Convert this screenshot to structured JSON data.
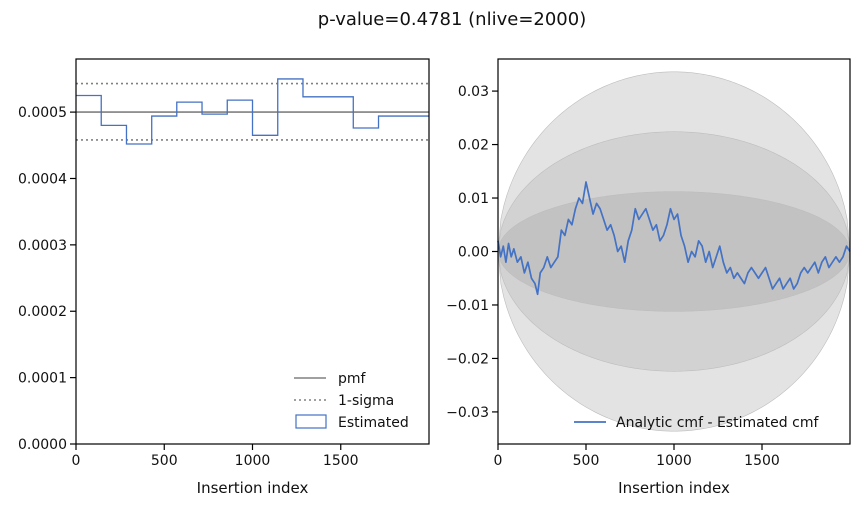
{
  "title": "p-value=0.4781 (nlive=2000)",
  "colors": {
    "estimated": "#4472c4",
    "pmf": "#808080",
    "sigma": "#808080",
    "band_outer": "#e3e3e3",
    "band_middle": "#d2d2d2",
    "band_inner": "#c2c2c2",
    "frame": "#000000"
  },
  "chart_data": [
    {
      "type": "histogram",
      "xlabel": "Insertion index",
      "ylabel": "",
      "xlim": [
        0,
        2000
      ],
      "ylim": [
        0,
        0.00058
      ],
      "x_ticks": [
        0,
        500,
        1000,
        1500
      ],
      "x_tick_labels": [
        "0",
        "500",
        "1000",
        "1500"
      ],
      "y_ticks": [
        0,
        0.0001,
        0.0002,
        0.0003,
        0.0004,
        0.0005
      ],
      "y_tick_labels": [
        "0.0000",
        "0.0001",
        "0.0002",
        "0.0003",
        "0.0004",
        "0.0005"
      ],
      "pmf": 0.0005,
      "sigma_upper": 0.000543,
      "sigma_lower": 0.000458,
      "bin_edges": [
        0,
        143,
        286,
        429,
        571,
        714,
        857,
        1000,
        1143,
        1286,
        1429,
        1571,
        1714,
        1857,
        2000
      ],
      "bin_values": [
        0.000525,
        0.00048,
        0.000452,
        0.000494,
        0.000515,
        0.000497,
        0.000518,
        0.000465,
        0.00055,
        0.000523,
        0.000523,
        0.000476,
        0.000494,
        0.000494
      ],
      "legend": {
        "placement": "lower-right",
        "pmf_label": "pmf",
        "sigma_label": "1-sigma",
        "estimated_label": "Estimated"
      }
    },
    {
      "type": "line",
      "xlabel": "Insertion index",
      "ylabel": "",
      "xlim": [
        0,
        2000
      ],
      "ylim": [
        -0.036,
        0.036
      ],
      "x_ticks": [
        0,
        500,
        1000,
        1500
      ],
      "x_tick_labels": [
        "0",
        "500",
        "1000",
        "1500"
      ],
      "y_ticks": [
        -0.03,
        -0.02,
        -0.01,
        0.0,
        0.01,
        0.02,
        0.03
      ],
      "y_tick_labels": [
        "−0.03",
        "−0.02",
        "−0.01",
        "0.00",
        "0.01",
        "0.02",
        "0.03"
      ],
      "bands_sigma": [
        1,
        2,
        3
      ],
      "band_sigma_scale": 0.0112,
      "series": [
        {
          "name": "Analytic cmf - Estimated cmf",
          "x": [
            0,
            15,
            30,
            45,
            60,
            75,
            90,
            110,
            130,
            150,
            170,
            190,
            210,
            225,
            240,
            260,
            280,
            300,
            320,
            340,
            360,
            380,
            400,
            420,
            440,
            460,
            480,
            500,
            520,
            540,
            560,
            580,
            600,
            620,
            640,
            660,
            680,
            700,
            720,
            740,
            760,
            780,
            800,
            820,
            840,
            860,
            880,
            900,
            920,
            940,
            960,
            980,
            1000,
            1020,
            1040,
            1060,
            1080,
            1100,
            1120,
            1140,
            1160,
            1180,
            1200,
            1220,
            1240,
            1260,
            1280,
            1300,
            1320,
            1340,
            1360,
            1380,
            1400,
            1420,
            1440,
            1460,
            1480,
            1500,
            1520,
            1540,
            1560,
            1580,
            1600,
            1620,
            1640,
            1660,
            1680,
            1700,
            1720,
            1740,
            1760,
            1780,
            1800,
            1820,
            1840,
            1860,
            1880,
            1900,
            1920,
            1940,
            1960,
            1980,
            2000
          ],
          "y": [
            0.002,
            -0.001,
            0.001,
            -0.002,
            0.0015,
            -0.001,
            0.0005,
            -0.002,
            -0.001,
            -0.004,
            -0.002,
            -0.005,
            -0.006,
            -0.008,
            -0.004,
            -0.003,
            -0.001,
            -0.003,
            -0.002,
            -0.001,
            0.004,
            0.003,
            0.006,
            0.005,
            0.008,
            0.01,
            0.009,
            0.013,
            0.01,
            0.007,
            0.009,
            0.008,
            0.006,
            0.004,
            0.005,
            0.003,
            0.0,
            0.001,
            -0.002,
            0.002,
            0.004,
            0.008,
            0.006,
            0.007,
            0.008,
            0.006,
            0.004,
            0.005,
            0.002,
            0.003,
            0.005,
            0.008,
            0.006,
            0.007,
            0.003,
            0.001,
            -0.002,
            0.0,
            -0.001,
            0.002,
            0.001,
            -0.002,
            0.0,
            -0.003,
            -0.001,
            0.001,
            -0.002,
            -0.004,
            -0.003,
            -0.005,
            -0.004,
            -0.005,
            -0.006,
            -0.004,
            -0.003,
            -0.004,
            -0.005,
            -0.004,
            -0.003,
            -0.005,
            -0.007,
            -0.006,
            -0.005,
            -0.007,
            -0.006,
            -0.005,
            -0.007,
            -0.006,
            -0.004,
            -0.003,
            -0.004,
            -0.003,
            -0.002,
            -0.004,
            -0.002,
            -0.001,
            -0.003,
            -0.002,
            -0.001,
            -0.002,
            -0.001,
            0.001,
            0.0
          ]
        }
      ],
      "legend": {
        "placement": "lower-right",
        "line_label": "Analytic cmf - Estimated cmf"
      }
    }
  ]
}
